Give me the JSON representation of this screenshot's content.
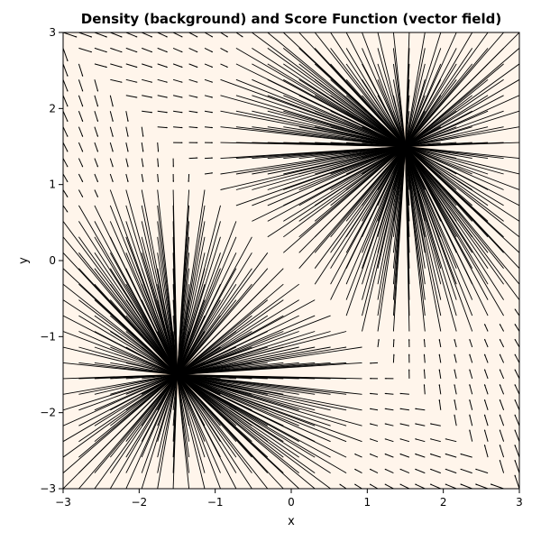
{
  "chart_data": {
    "type": "vector_field",
    "title": "Density (background) and Score Function (vector field)",
    "xlabel": "x",
    "ylabel": "y",
    "xlim": [
      -3,
      3
    ],
    "ylim": [
      -3,
      3
    ],
    "xticks": [
      "−3",
      "−2",
      "−1",
      "0",
      "1",
      "2",
      "3"
    ],
    "yticks": [
      "−3",
      "−2",
      "−1",
      "0",
      "1",
      "2",
      "3"
    ],
    "xtick_values": [
      -3,
      -2,
      -1,
      0,
      1,
      2,
      3
    ],
    "ytick_values": [
      -3,
      -2,
      -1,
      0,
      1,
      2,
      3
    ],
    "background": {
      "name": "density",
      "colormap": "Oranges",
      "modes": [
        {
          "x": 1.5,
          "y": 1.5
        },
        {
          "x": -1.5,
          "y": -1.5
        }
      ],
      "base_color": "#fff5eb"
    },
    "vector_field": {
      "name": "score function",
      "grid_x_range": [
        -3,
        3
      ],
      "grid_y_range": [
        -3,
        3
      ],
      "grid_count": 30,
      "arrow_color": "#000000",
      "points_toward": "nearest mode"
    },
    "grid": false
  }
}
